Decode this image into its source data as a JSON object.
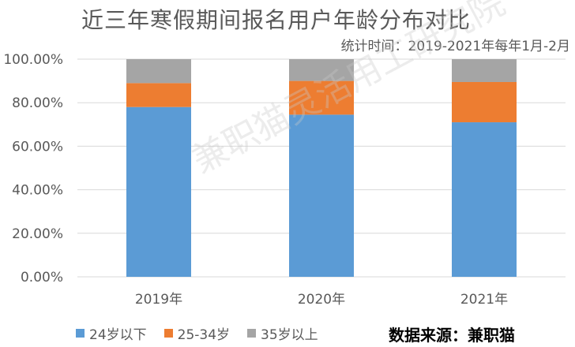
{
  "chart_data": {
    "type": "bar",
    "stacked": true,
    "title": "近三年寒假期间报名用户年龄分布对比",
    "subtitle": "统计时间：2019-2021年每年1月-2月",
    "categories": [
      "2019年",
      "2020年",
      "2021年"
    ],
    "series": [
      {
        "name": "24岁以下",
        "values": [
          78.0,
          74.5,
          71.0
        ],
        "color": "#5b9bd5"
      },
      {
        "name": "25-34岁",
        "values": [
          11.0,
          15.5,
          18.5
        ],
        "color": "#ed7d31"
      },
      {
        "name": "35岁以上",
        "values": [
          11.0,
          10.0,
          10.5
        ],
        "color": "#a5a5a5"
      }
    ],
    "ylim": [
      0,
      100
    ],
    "yticks": [
      "0.00%",
      "20.00%",
      "40.00%",
      "60.00%",
      "80.00%",
      "100.00%"
    ],
    "ytick_values": [
      0,
      20,
      40,
      60,
      80,
      100
    ],
    "grid": true,
    "legend_position": "bottom-left"
  },
  "watermark": "兼职猫灵活用工研究院",
  "source": "数据来源：兼职猫"
}
